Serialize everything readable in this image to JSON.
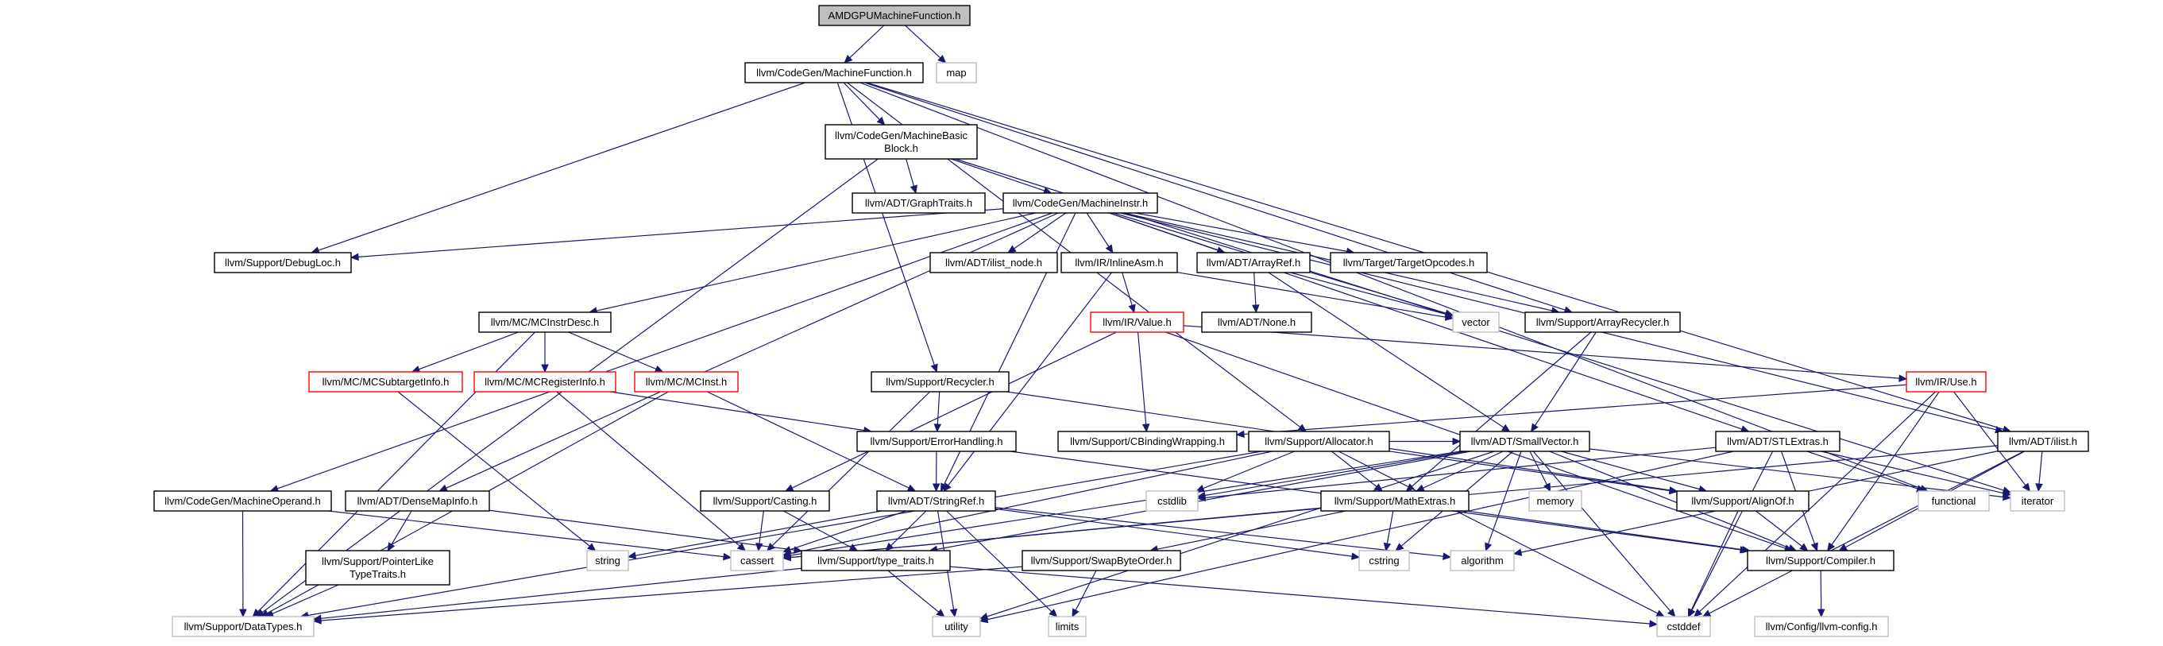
{
  "diagram": {
    "nodes": [
      {
        "id": "root",
        "text": "AMDGPUMachineFunction.h",
        "style": "root"
      },
      {
        "id": "map",
        "text": "map",
        "style": "sys"
      },
      {
        "id": "mf",
        "text": "llvm/CodeGen/MachineFunction.h",
        "style": "std"
      },
      {
        "id": "mbb",
        "text": "llvm/CodeGen/MachineBasic\nBlock.h",
        "style": "std"
      },
      {
        "id": "gt",
        "text": "llvm/ADT/GraphTraits.h",
        "style": "std"
      },
      {
        "id": "mi",
        "text": "llvm/CodeGen/MachineInstr.h",
        "style": "std"
      },
      {
        "id": "dl",
        "text": "llvm/Support/DebugLoc.h",
        "style": "std"
      },
      {
        "id": "ilnode",
        "text": "llvm/ADT/ilist_node.h",
        "style": "std"
      },
      {
        "id": "inl",
        "text": "llvm/IR/InlineAsm.h",
        "style": "std"
      },
      {
        "id": "aref",
        "text": "llvm/ADT/ArrayRef.h",
        "style": "std"
      },
      {
        "id": "top",
        "text": "llvm/Target/TargetOpcodes.h",
        "style": "std"
      },
      {
        "id": "vector",
        "text": "vector",
        "style": "sys"
      },
      {
        "id": "arec",
        "text": "llvm/Support/ArrayRecycler.h",
        "style": "std"
      },
      {
        "id": "mcid",
        "text": "llvm/MC/MCInstrDesc.h",
        "style": "std"
      },
      {
        "id": "none",
        "text": "llvm/ADT/None.h",
        "style": "std"
      },
      {
        "id": "val",
        "text": "llvm/IR/Value.h",
        "style": "red"
      },
      {
        "id": "mcsti",
        "text": "llvm/MC/MCSubtargetInfo.h",
        "style": "red"
      },
      {
        "id": "mcri",
        "text": "llvm/MC/MCRegisterInfo.h",
        "style": "red"
      },
      {
        "id": "mcinst",
        "text": "llvm/MC/MCInst.h",
        "style": "red"
      },
      {
        "id": "rec",
        "text": "llvm/Support/Recycler.h",
        "style": "std"
      },
      {
        "id": "use",
        "text": "llvm/IR/Use.h",
        "style": "red"
      },
      {
        "id": "err",
        "text": "llvm/Support/ErrorHandling.h",
        "style": "std"
      },
      {
        "id": "cbw",
        "text": "llvm/Support/CBindingWrapping.h",
        "style": "std"
      },
      {
        "id": "alloc",
        "text": "llvm/Support/Allocator.h",
        "style": "std"
      },
      {
        "id": "sv",
        "text": "llvm/ADT/SmallVector.h",
        "style": "std"
      },
      {
        "id": "stl",
        "text": "llvm/ADT/STLExtras.h",
        "style": "std"
      },
      {
        "id": "ilist",
        "text": "llvm/ADT/ilist.h",
        "style": "std"
      },
      {
        "id": "mo",
        "text": "llvm/CodeGen/MachineOperand.h",
        "style": "std"
      },
      {
        "id": "dmi",
        "text": "llvm/ADT/DenseMapInfo.h",
        "style": "std"
      },
      {
        "id": "cast",
        "text": "llvm/Support/Casting.h",
        "style": "std"
      },
      {
        "id": "sref",
        "text": "llvm/ADT/StringRef.h",
        "style": "std"
      },
      {
        "id": "cstdlib",
        "text": "cstdlib",
        "style": "sys"
      },
      {
        "id": "mathx",
        "text": "llvm/Support/MathExtras.h",
        "style": "std"
      },
      {
        "id": "memory",
        "text": "memory",
        "style": "sys"
      },
      {
        "id": "alignof",
        "text": "llvm/Support/AlignOf.h",
        "style": "std"
      },
      {
        "id": "functional",
        "text": "functional",
        "style": "sys"
      },
      {
        "id": "iterator",
        "text": "iterator",
        "style": "sys"
      },
      {
        "id": "plt",
        "text": "llvm/Support/PointerLike\nTypeTraits.h",
        "style": "std"
      },
      {
        "id": "string",
        "text": "string",
        "style": "sys"
      },
      {
        "id": "cassert",
        "text": "cassert",
        "style": "sys"
      },
      {
        "id": "tt",
        "text": "llvm/Support/type_traits.h",
        "style": "std"
      },
      {
        "id": "sbo",
        "text": "llvm/Support/SwapByteOrder.h",
        "style": "std"
      },
      {
        "id": "cstring",
        "text": "cstring",
        "style": "sys"
      },
      {
        "id": "algorithm",
        "text": "algorithm",
        "style": "sys"
      },
      {
        "id": "compiler",
        "text": "llvm/Support/Compiler.h",
        "style": "std"
      },
      {
        "id": "dt",
        "text": "llvm/Support/DataTypes.h",
        "style": "sys"
      },
      {
        "id": "utility",
        "text": "utility",
        "style": "sys"
      },
      {
        "id": "limits",
        "text": "limits",
        "style": "sys"
      },
      {
        "id": "cstddef",
        "text": "cstddef",
        "style": "sys"
      },
      {
        "id": "llvmcfg",
        "text": "llvm/Config/llvm-config.h",
        "style": "sys"
      }
    ],
    "edges": [
      [
        "root",
        "mf"
      ],
      [
        "root",
        "map"
      ],
      [
        "mf",
        "mbb"
      ],
      [
        "mf",
        "dl"
      ],
      [
        "mf",
        "rec"
      ],
      [
        "mf",
        "arec"
      ],
      [
        "mf",
        "ilist"
      ],
      [
        "mf",
        "functional"
      ],
      [
        "mf",
        "alloc"
      ],
      [
        "mbb",
        "gt"
      ],
      [
        "mbb",
        "mi"
      ],
      [
        "mbb",
        "dt"
      ],
      [
        "mbb",
        "iterator"
      ],
      [
        "mi",
        "dl"
      ],
      [
        "mi",
        "ilnode"
      ],
      [
        "mi",
        "inl"
      ],
      [
        "mi",
        "aref"
      ],
      [
        "mi",
        "top"
      ],
      [
        "mi",
        "vector"
      ],
      [
        "mi",
        "arec"
      ],
      [
        "mi",
        "mcid"
      ],
      [
        "mi",
        "mo"
      ],
      [
        "mi",
        "dmi"
      ],
      [
        "mi",
        "stl"
      ],
      [
        "mi",
        "ilist"
      ],
      [
        "mi",
        "sref"
      ],
      [
        "inl",
        "val"
      ],
      [
        "inl",
        "vector"
      ],
      [
        "inl",
        "sref"
      ],
      [
        "aref",
        "none"
      ],
      [
        "aref",
        "vector"
      ],
      [
        "aref",
        "sv"
      ],
      [
        "arec",
        "sv"
      ],
      [
        "arec",
        "mathx"
      ],
      [
        "mcid",
        "mcsti"
      ],
      [
        "mcid",
        "mcri"
      ],
      [
        "mcid",
        "mcinst"
      ],
      [
        "mcid",
        "dt"
      ],
      [
        "val",
        "use"
      ],
      [
        "val",
        "cbw"
      ],
      [
        "val",
        "cast"
      ],
      [
        "val",
        "compiler"
      ],
      [
        "mcsti",
        "string"
      ],
      [
        "mcri",
        "err"
      ],
      [
        "mcri",
        "cassert"
      ],
      [
        "mcinst",
        "sref"
      ],
      [
        "mcinst",
        "dt"
      ],
      [
        "rec",
        "err"
      ],
      [
        "rec",
        "alignof"
      ],
      [
        "rec",
        "cassert"
      ],
      [
        "use",
        "cbw"
      ],
      [
        "use",
        "iterator"
      ],
      [
        "use",
        "compiler"
      ],
      [
        "use",
        "cstddef"
      ],
      [
        "err",
        "sref"
      ],
      [
        "err",
        "compiler"
      ],
      [
        "alloc",
        "sv"
      ],
      [
        "alloc",
        "alignof"
      ],
      [
        "alloc",
        "mathx"
      ],
      [
        "alloc",
        "cstdlib"
      ],
      [
        "alloc",
        "cstddef"
      ],
      [
        "alloc",
        "dt"
      ],
      [
        "alloc",
        "cassert"
      ],
      [
        "sv",
        "alignof"
      ],
      [
        "sv",
        "compiler"
      ],
      [
        "sv",
        "mathx"
      ],
      [
        "sv",
        "cassert"
      ],
      [
        "sv",
        "cstdlib"
      ],
      [
        "sv",
        "memory"
      ],
      [
        "sv",
        "algorithm"
      ],
      [
        "sv",
        "cstddef"
      ],
      [
        "sv",
        "cstring"
      ],
      [
        "sv",
        "iterator"
      ],
      [
        "sv",
        "tt"
      ],
      [
        "sv",
        "utility"
      ],
      [
        "stl",
        "compiler"
      ],
      [
        "stl",
        "cstddef"
      ],
      [
        "stl",
        "cstdlib"
      ],
      [
        "stl",
        "functional"
      ],
      [
        "stl",
        "iterator"
      ],
      [
        "stl",
        "utility"
      ],
      [
        "ilist",
        "compiler"
      ],
      [
        "ilist",
        "algorithm"
      ],
      [
        "ilist",
        "cassert"
      ],
      [
        "ilist",
        "cstddef"
      ],
      [
        "ilist",
        "iterator"
      ],
      [
        "mo",
        "dt"
      ],
      [
        "mo",
        "cassert"
      ],
      [
        "dmi",
        "plt"
      ],
      [
        "dmi",
        "tt"
      ],
      [
        "plt",
        "dt"
      ],
      [
        "cast",
        "tt"
      ],
      [
        "cast",
        "cassert"
      ],
      [
        "sref",
        "tt"
      ],
      [
        "sref",
        "algorithm"
      ],
      [
        "sref",
        "cassert"
      ],
      [
        "sref",
        "cstring"
      ],
      [
        "sref",
        "limits"
      ],
      [
        "sref",
        "string"
      ],
      [
        "sref",
        "utility"
      ],
      [
        "mathx",
        "sbo"
      ],
      [
        "mathx",
        "compiler"
      ],
      [
        "mathx",
        "cstring"
      ],
      [
        "mathx",
        "cassert"
      ],
      [
        "alignof",
        "compiler"
      ],
      [
        "alignof",
        "cstddef"
      ],
      [
        "tt",
        "dt"
      ],
      [
        "tt",
        "utility"
      ],
      [
        "tt",
        "cstddef"
      ],
      [
        "sbo",
        "dt"
      ],
      [
        "sbo",
        "limits"
      ],
      [
        "compiler",
        "llvmcfg"
      ]
    ]
  }
}
